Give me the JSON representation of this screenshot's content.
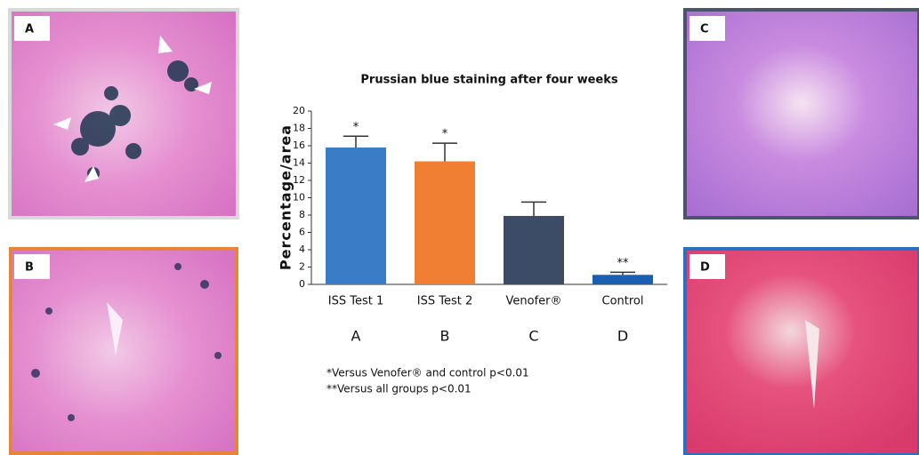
{
  "chart_data": {
    "type": "bar",
    "title": "Prussian blue staining after four weeks",
    "ylabel": "Percentage/area",
    "categories": [
      "ISS Test 1",
      "ISS Test 2",
      "Venofer®",
      "Control"
    ],
    "group_labels": [
      "A",
      "B",
      "C",
      "D"
    ],
    "values": [
      15.8,
      14.2,
      7.9,
      1.1
    ],
    "errors": [
      1.3,
      2.1,
      1.6,
      0.3
    ],
    "colors": [
      "#3b7cc6",
      "#f17f33",
      "#3c4c66",
      "#1b5fb3"
    ],
    "annotations": [
      "*",
      "*",
      null,
      "**"
    ],
    "ylim": [
      0,
      20
    ],
    "yticks": [
      0,
      2,
      4,
      6,
      8,
      10,
      12,
      14,
      16,
      18,
      20
    ],
    "notes": [
      "*Versus Venofer® and control p<0.01",
      "**Versus all groups p<0.01"
    ]
  },
  "panels": [
    {
      "label": "A"
    },
    {
      "label": "B"
    },
    {
      "label": "C"
    },
    {
      "label": "D"
    }
  ]
}
